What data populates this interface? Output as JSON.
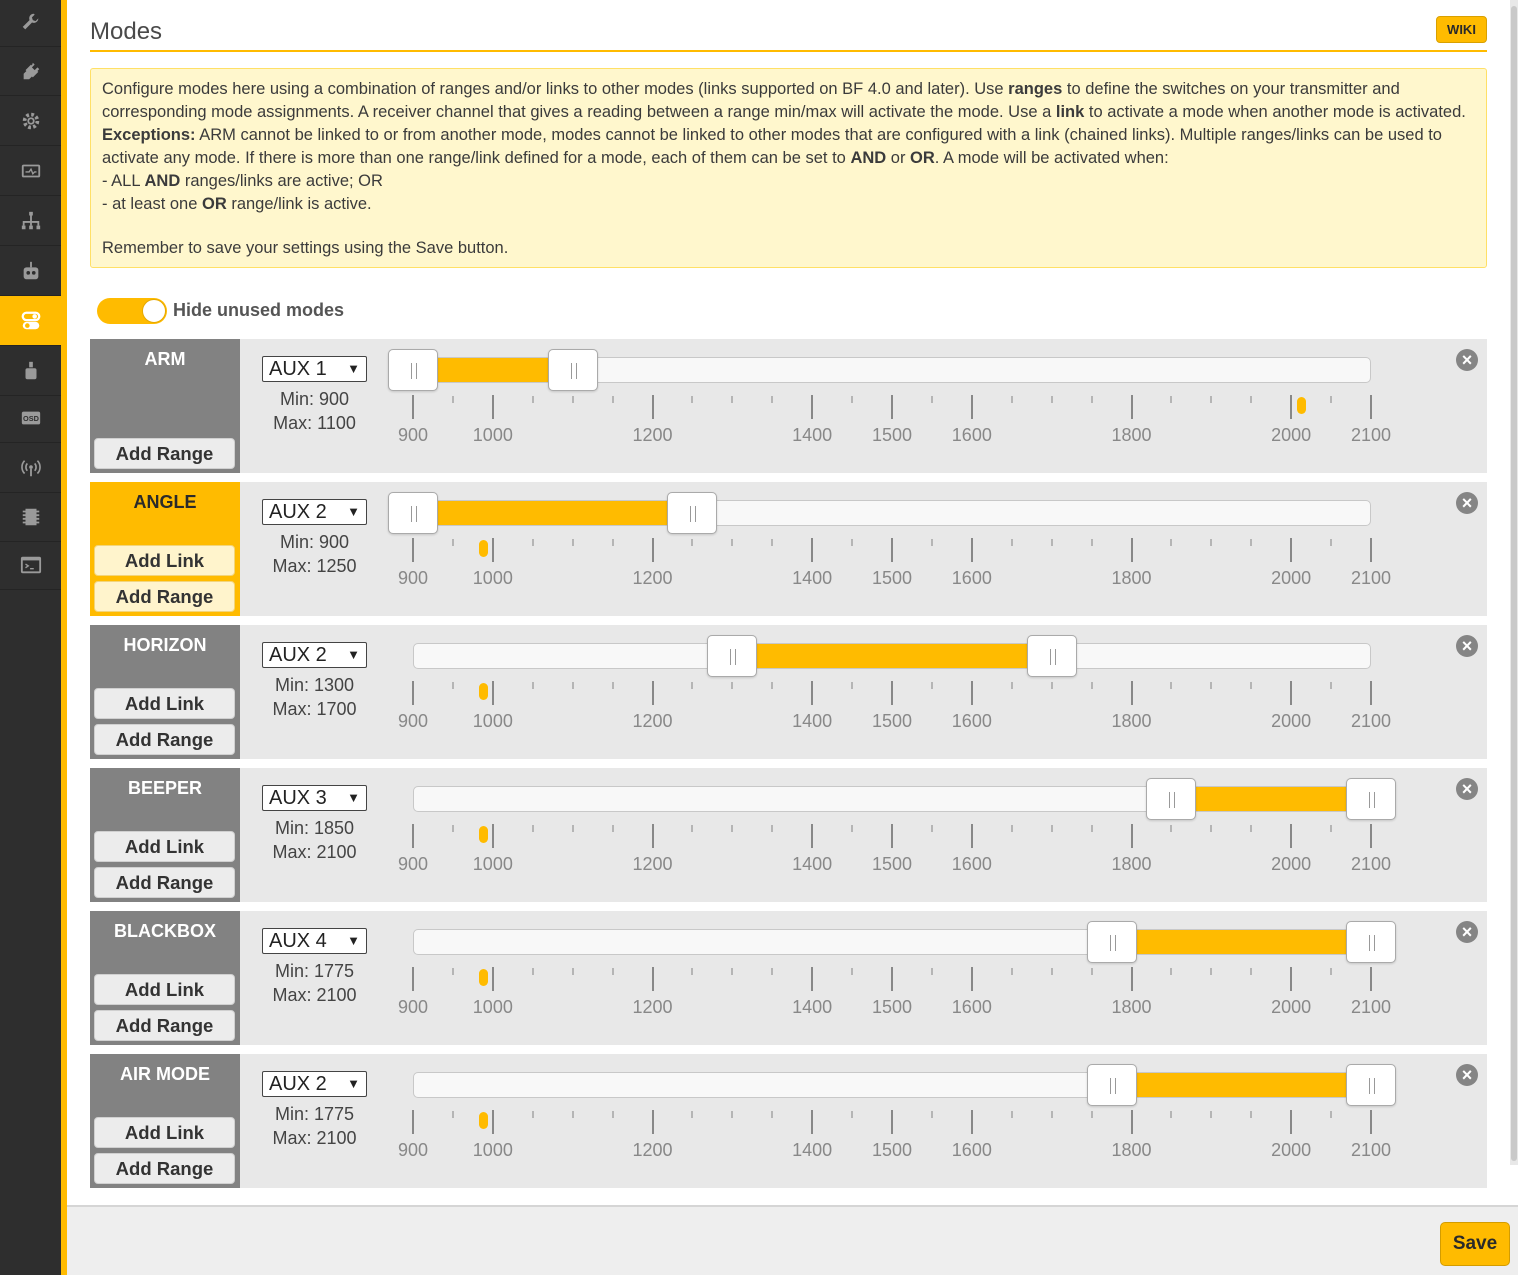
{
  "sidebar": {
    "items": [
      {
        "icon": "wrench-icon"
      },
      {
        "icon": "plug-icon"
      },
      {
        "icon": "gear-icon"
      },
      {
        "icon": "power-icon"
      },
      {
        "icon": "network-icon"
      },
      {
        "icon": "receiver-icon"
      },
      {
        "icon": "modes-toggle-icon",
        "active": true
      },
      {
        "icon": "motor-icon"
      },
      {
        "icon": "osd-icon",
        "label": "OSD"
      },
      {
        "icon": "signal-icon"
      },
      {
        "icon": "chip-icon"
      },
      {
        "icon": "terminal-icon"
      }
    ]
  },
  "header": {
    "title": "Modes",
    "wiki_label": "WIKI"
  },
  "note": {
    "p1_a": "Configure modes here using a combination of ranges and/or links to other modes (links supported on BF 4.0 and later). Use ",
    "p1_ranges": "ranges",
    "p1_b": " to define the switches on your transmitter and corresponding mode assignments. A receiver channel that gives a reading between a range min/max will activate the mode. Use a ",
    "p1_link": "link",
    "p1_c": " to activate a mode when another mode is activated. ",
    "p1_exceptions": "Exceptions:",
    "p1_d": " ARM cannot be linked to or from another mode, modes cannot be linked to other modes that are configured with a link (chained links). Multiple ranges/links can be used to activate any mode. If there is more than one range/link defined for a mode, each of them can be set to ",
    "p1_and": "AND",
    "p1_e": " or ",
    "p1_or": "OR",
    "p1_f": ". A mode will be activated when:",
    "line2_a": "- ALL ",
    "line2_and": "AND",
    "line2_b": " ranges/links are active; OR",
    "line3_a": "- at least one ",
    "line3_or": "OR",
    "line3_b": " range/link is active.",
    "remember": "Remember to save your settings using the Save button."
  },
  "toggle": {
    "label": "Hide unused modes",
    "on": true
  },
  "scale": {
    "min": 900,
    "max": 2100,
    "labels": [
      "900",
      "1000",
      "1200",
      "1400",
      "1500",
      "1600",
      "1800",
      "2000",
      "2100"
    ]
  },
  "modes": [
    {
      "name": "ARM",
      "active": false,
      "channel": "AUX 1",
      "min_label": "Min: 900",
      "max_label": "Max: 1100",
      "min": 900,
      "max": 1100,
      "marker": 2012,
      "add_link": "",
      "add_range": "Add Range"
    },
    {
      "name": "ANGLE",
      "active": true,
      "channel": "AUX 2",
      "min_label": "Min: 900",
      "max_label": "Max: 1250",
      "min": 900,
      "max": 1250,
      "marker": 988,
      "add_link": "Add Link",
      "add_range": "Add Range"
    },
    {
      "name": "HORIZON",
      "active": false,
      "channel": "AUX 2",
      "min_label": "Min: 1300",
      "max_label": "Max: 1700",
      "min": 1300,
      "max": 1700,
      "marker": 988,
      "add_link": "Add Link",
      "add_range": "Add Range"
    },
    {
      "name": "BEEPER",
      "active": false,
      "channel": "AUX 3",
      "min_label": "Min: 1850",
      "max_label": "Max: 2100",
      "min": 1850,
      "max": 2100,
      "marker": 988,
      "add_link": "Add Link",
      "add_range": "Add Range"
    },
    {
      "name": "BLACKBOX",
      "active": false,
      "channel": "AUX 4",
      "min_label": "Min: 1775",
      "max_label": "Max: 2100",
      "min": 1775,
      "max": 2100,
      "marker": 988,
      "add_link": "Add Link",
      "add_range": "Add Range"
    },
    {
      "name": "AIR MODE",
      "active": false,
      "channel": "AUX 2",
      "min_label": "Min: 1775",
      "max_label": "Max: 2100",
      "min": 1775,
      "max": 2100,
      "marker": 988,
      "add_link": "Add Link",
      "add_range": "Add Range"
    }
  ],
  "footer": {
    "save_label": "Save"
  },
  "colors": {
    "accent": "#ffbb00",
    "sidebar": "#2e2e2e",
    "inactive_mode": "#828282"
  }
}
